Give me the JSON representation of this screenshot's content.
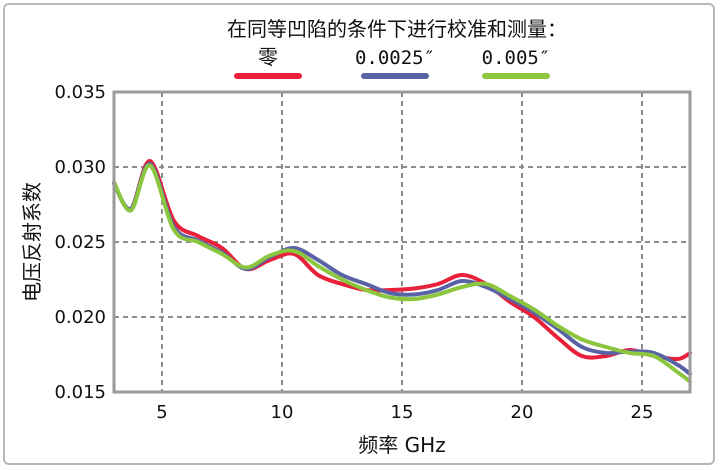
{
  "chart_data": {
    "type": "line",
    "title": "在同等凹陷的条件下进行校准和测量：",
    "xlabel": "频率 GHz",
    "ylabel": "电压反射系数",
    "xlim": [
      3,
      27
    ],
    "ylim": [
      0.015,
      0.035
    ],
    "xticks": [
      5,
      10,
      15,
      20,
      25
    ],
    "xtick_labels": [
      "5",
      "10",
      "15",
      "20",
      "25"
    ],
    "yticks": [
      0.015,
      0.02,
      0.025,
      0.03,
      0.035
    ],
    "ytick_labels": [
      "0.015",
      "0.020",
      "0.025",
      "0.030",
      "0.035"
    ],
    "grid": true,
    "legend_position": "top",
    "series": [
      {
        "name": "零",
        "color": "#e8203a",
        "x": [
          3,
          3.7,
          4.5,
          5.5,
          6.5,
          7.5,
          8.5,
          9.5,
          10.5,
          11.5,
          12.5,
          13.5,
          14.5,
          15.5,
          16.5,
          17.5,
          18.5,
          19.5,
          20.5,
          21.5,
          22.5,
          23.5,
          24.5,
          25.5,
          26.5,
          27
        ],
        "y": [
          0.0289,
          0.0272,
          0.0304,
          0.0264,
          0.0254,
          0.0246,
          0.0232,
          0.0238,
          0.0242,
          0.0228,
          0.0222,
          0.0218,
          0.0218,
          0.0219,
          0.0222,
          0.0228,
          0.0222,
          0.021,
          0.02,
          0.0186,
          0.0174,
          0.0174,
          0.0178,
          0.0174,
          0.0172,
          0.0176
        ]
      },
      {
        "name": "0.0025″",
        "color": "#5a62a6",
        "x": [
          3,
          3.7,
          4.5,
          5.5,
          6.5,
          7.5,
          8.5,
          9.5,
          10.5,
          11.5,
          12.5,
          13.5,
          14.5,
          15.5,
          16.5,
          17.5,
          18.5,
          19.5,
          20.5,
          21.5,
          22.5,
          23.5,
          24.5,
          25.5,
          26.5,
          27
        ],
        "y": [
          0.0289,
          0.0272,
          0.0302,
          0.026,
          0.0251,
          0.0243,
          0.0232,
          0.024,
          0.0246,
          0.0238,
          0.0228,
          0.0222,
          0.0216,
          0.0215,
          0.0218,
          0.0224,
          0.022,
          0.0212,
          0.0203,
          0.0192,
          0.018,
          0.0176,
          0.0177,
          0.0176,
          0.0168,
          0.0162
        ]
      },
      {
        "name": "0.005″",
        "color": "#8cc63f",
        "x": [
          3,
          3.7,
          4.5,
          5.5,
          6.5,
          7.5,
          8.5,
          9.5,
          10.5,
          11.5,
          12.5,
          13.5,
          14.5,
          15.5,
          16.5,
          17.5,
          18.5,
          19.5,
          20.5,
          21.5,
          22.5,
          23.5,
          24.5,
          25.5,
          26.5,
          27
        ],
        "y": [
          0.029,
          0.0271,
          0.0301,
          0.0258,
          0.025,
          0.0242,
          0.0233,
          0.0241,
          0.0244,
          0.0234,
          0.0225,
          0.0218,
          0.0213,
          0.0212,
          0.0215,
          0.022,
          0.0222,
          0.0214,
          0.0205,
          0.0194,
          0.0185,
          0.018,
          0.0176,
          0.0174,
          0.0163,
          0.0157
        ]
      }
    ]
  }
}
